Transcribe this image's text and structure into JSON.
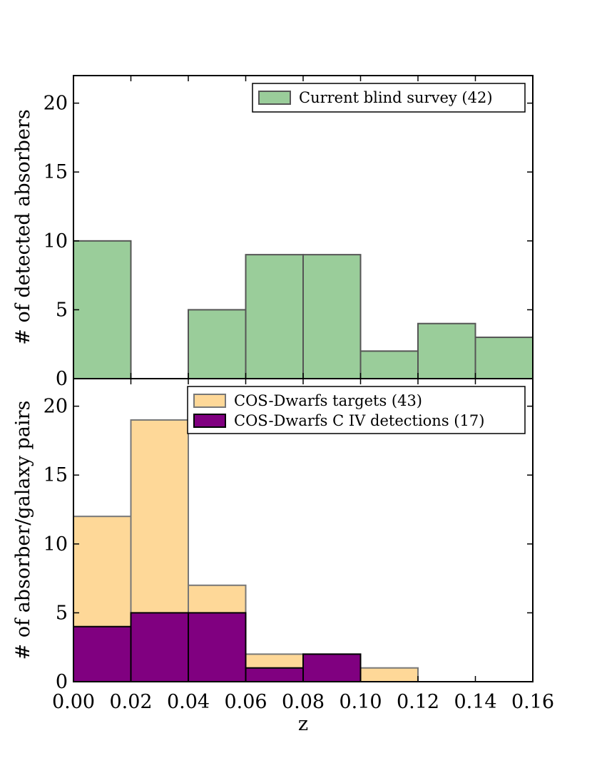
{
  "chart_data": [
    {
      "type": "bar",
      "panel": "top",
      "title": "",
      "xlabel": "",
      "ylabel": "# of detected absorbers",
      "xlim": [
        0.0,
        0.16
      ],
      "ylim": [
        0,
        22
      ],
      "yticks": [
        0,
        5,
        10,
        15,
        20
      ],
      "bin_edges": [
        0.0,
        0.02,
        0.04,
        0.06,
        0.08,
        0.1,
        0.12,
        0.14,
        0.16
      ],
      "legend_position": "top-right",
      "series": [
        {
          "name": "Current blind survey (42)",
          "color": "#9acd9a",
          "edge": "#555555",
          "values": [
            10,
            0,
            5,
            9,
            9,
            2,
            4,
            3
          ]
        }
      ]
    },
    {
      "type": "bar",
      "panel": "bottom",
      "title": "",
      "xlabel": "z",
      "ylabel": "# of absorber/galaxy pairs",
      "xlim": [
        0.0,
        0.16
      ],
      "ylim": [
        0,
        22
      ],
      "yticks": [
        0,
        5,
        10,
        15,
        20
      ],
      "xticks": [
        "0.00",
        "0.02",
        "0.04",
        "0.06",
        "0.08",
        "0.10",
        "0.12",
        "0.14",
        "0.16"
      ],
      "bin_edges": [
        0.0,
        0.02,
        0.04,
        0.06,
        0.08,
        0.1,
        0.12,
        0.14,
        0.16
      ],
      "legend_position": "top-right",
      "series": [
        {
          "name": "COS-Dwarfs targets (43)",
          "color": "#fed898",
          "edge": "#777777",
          "values": [
            12,
            19,
            7,
            2,
            2,
            1,
            0,
            0
          ]
        },
        {
          "name": "COS-Dwarfs C IV detections (17)",
          "color": "#800080",
          "edge": "#000000",
          "values": [
            4,
            5,
            5,
            1,
            2,
            0,
            0,
            0
          ]
        }
      ]
    }
  ]
}
